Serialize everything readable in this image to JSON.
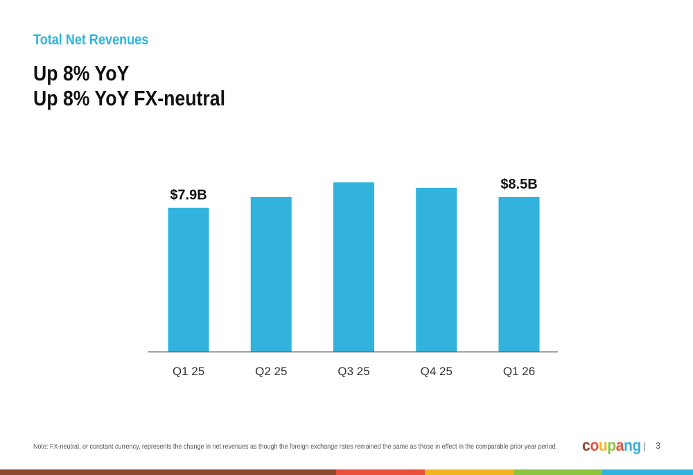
{
  "slide": {
    "kicker": "Total Net Revenues",
    "headline_1": "Up 8% YoY",
    "headline_2": "Up 8% YoY FX-neutral",
    "footnote": "Note: FX-neutral, or constant currency, represents the change in net revenues as though the foreign exchange rates remained the same as those in effect in the comparable prior year period.",
    "page_number": "3",
    "separator": "|"
  },
  "logo": {
    "text": "coupang",
    "letters": [
      {
        "ch": "c",
        "color": "#8b4a2b"
      },
      {
        "ch": "o",
        "color": "#e8503a"
      },
      {
        "ch": "u",
        "color": "#f3b51c"
      },
      {
        "ch": "p",
        "color": "#8cc63f"
      },
      {
        "ch": "a",
        "color": "#e8503a"
      },
      {
        "ch": "n",
        "color": "#2fb4de"
      },
      {
        "ch": "g",
        "color": "#2fb4de"
      }
    ]
  },
  "colors": {
    "bar": "#31b3dd",
    "axis": "#666666",
    "tick_label": "#333333",
    "data_label": "#111111",
    "bottom_bar": [
      "#8b4a2b",
      "#e8503a",
      "#f3b51c",
      "#8cc63f",
      "#2fb4de"
    ]
  },
  "chart_data": {
    "type": "bar",
    "categories": [
      "Q1 25",
      "Q2 25",
      "Q3 25",
      "Q4 25",
      "Q1 26"
    ],
    "values": [
      7.9,
      8.5,
      9.3,
      9.0,
      8.5
    ],
    "data_labels": [
      "$7.9B",
      "",
      "",
      "",
      "$8.5B"
    ],
    "title": "",
    "xlabel": "",
    "ylabel": "",
    "ylim": [
      0,
      9.3
    ],
    "grid": false,
    "legend": "none"
  }
}
